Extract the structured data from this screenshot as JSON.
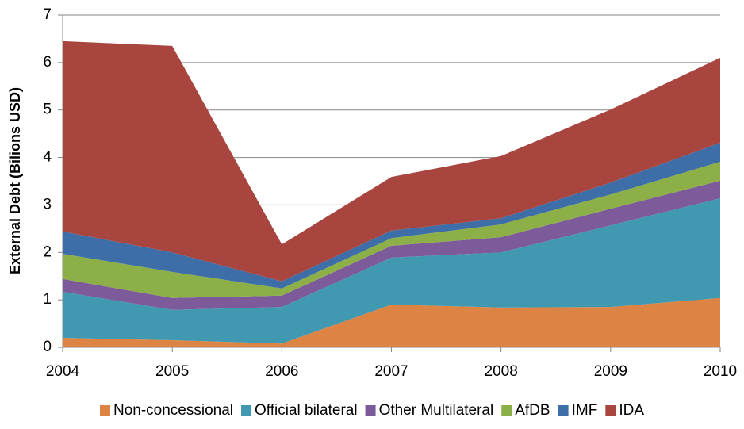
{
  "chart_data": {
    "type": "area",
    "stacked": true,
    "y_label": "External Debt (Bilions USD)",
    "x": [
      2004,
      2005,
      2006,
      2007,
      2008,
      2009,
      2010
    ],
    "xlim": [
      2004,
      2010
    ],
    "xticks": [
      2004,
      2005,
      2006,
      2007,
      2008,
      2009,
      2010
    ],
    "ylim": [
      0,
      7
    ],
    "yticks": [
      0,
      1,
      2,
      3,
      4,
      5,
      6,
      7
    ],
    "grid": true,
    "legend": "bottom",
    "series": [
      {
        "name": "Non-concessional",
        "color": "#dd8444",
        "values": [
          0.2,
          0.15,
          0.08,
          0.9,
          0.84,
          0.85,
          1.04
        ]
      },
      {
        "name": "Official bilateral",
        "color": "#4199b1",
        "values": [
          0.97,
          0.64,
          0.77,
          0.99,
          1.16,
          1.72,
          2.1
        ]
      },
      {
        "name": "Other Multilateral",
        "color": "#7d5b9b",
        "values": [
          0.27,
          0.25,
          0.24,
          0.25,
          0.32,
          0.35,
          0.37
        ]
      },
      {
        "name": "AfDB",
        "color": "#8caf47",
        "values": [
          0.53,
          0.55,
          0.15,
          0.16,
          0.27,
          0.3,
          0.4
        ]
      },
      {
        "name": "IMF",
        "color": "#3e6ea8",
        "values": [
          0.47,
          0.41,
          0.15,
          0.16,
          0.13,
          0.25,
          0.4
        ]
      },
      {
        "name": "IDA",
        "color": "#a9453f",
        "values": [
          4.01,
          4.35,
          0.78,
          1.13,
          1.31,
          1.54,
          1.79
        ]
      }
    ]
  }
}
